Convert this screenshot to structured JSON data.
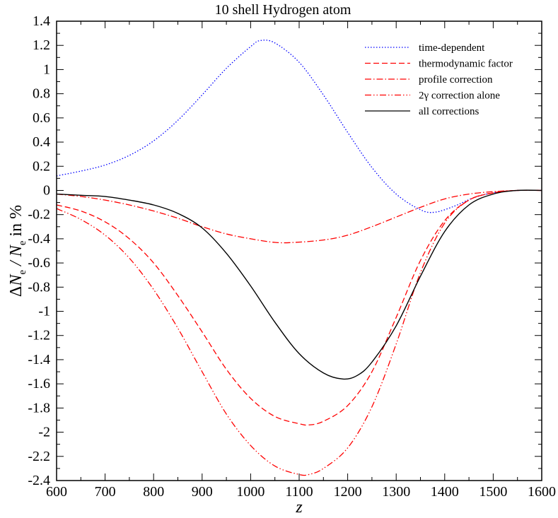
{
  "chart_data": {
    "type": "line",
    "title": "10 shell Hydrogen atom",
    "xlabel": "z",
    "ylabel": "ΔN_e / N_e in %",
    "xlim": [
      600,
      1600
    ],
    "ylim": [
      -2.4,
      1.4
    ],
    "x_ticks": [
      "600",
      "700",
      "800",
      "900",
      "1000",
      "1100",
      "1200",
      "1300",
      "1400",
      "1500",
      "1600"
    ],
    "y_ticks": [
      "1.4",
      "1.2",
      "1",
      "0.8",
      "0.6",
      "0.4",
      "0.2",
      "0",
      "-0.2",
      "-0.4",
      "-0.6",
      "-0.8",
      "-1",
      "-1.2",
      "-1.4",
      "-1.6",
      "-1.8",
      "-2",
      "-2.2",
      "-2.4"
    ],
    "legend_position": "top-right",
    "series": [
      {
        "name": "time-dependent",
        "color": "#0000ff",
        "dash": "dotted",
        "points": [
          [
            600,
            0.12
          ],
          [
            650,
            0.16
          ],
          [
            700,
            0.21
          ],
          [
            750,
            0.29
          ],
          [
            800,
            0.41
          ],
          [
            850,
            0.58
          ],
          [
            900,
            0.79
          ],
          [
            950,
            1.01
          ],
          [
            1000,
            1.19
          ],
          [
            1020,
            1.24
          ],
          [
            1050,
            1.22
          ],
          [
            1100,
            1.06
          ],
          [
            1150,
            0.79
          ],
          [
            1200,
            0.48
          ],
          [
            1250,
            0.19
          ],
          [
            1300,
            -0.03
          ],
          [
            1350,
            -0.16
          ],
          [
            1380,
            -0.18
          ],
          [
            1420,
            -0.13
          ],
          [
            1460,
            -0.06
          ],
          [
            1500,
            -0.02
          ],
          [
            1550,
            0.0
          ],
          [
            1600,
            0.0
          ]
        ]
      },
      {
        "name": "thermodynamic factor",
        "color": "#ff0000",
        "dash": "dashed",
        "points": [
          [
            600,
            -0.12
          ],
          [
            650,
            -0.17
          ],
          [
            700,
            -0.26
          ],
          [
            750,
            -0.4
          ],
          [
            800,
            -0.6
          ],
          [
            850,
            -0.87
          ],
          [
            900,
            -1.17
          ],
          [
            950,
            -1.48
          ],
          [
            1000,
            -1.72
          ],
          [
            1050,
            -1.87
          ],
          [
            1100,
            -1.93
          ],
          [
            1120,
            -1.94
          ],
          [
            1150,
            -1.91
          ],
          [
            1200,
            -1.78
          ],
          [
            1250,
            -1.5
          ],
          [
            1300,
            -1.05
          ],
          [
            1350,
            -0.58
          ],
          [
            1400,
            -0.25
          ],
          [
            1450,
            -0.08
          ],
          [
            1500,
            -0.02
          ],
          [
            1550,
            0.0
          ],
          [
            1600,
            0.0
          ]
        ]
      },
      {
        "name": "profile correction",
        "color": "#ff0000",
        "dash": "dashdot",
        "points": [
          [
            600,
            -0.03
          ],
          [
            650,
            -0.05
          ],
          [
            700,
            -0.08
          ],
          [
            750,
            -0.12
          ],
          [
            800,
            -0.17
          ],
          [
            850,
            -0.23
          ],
          [
            900,
            -0.3
          ],
          [
            950,
            -0.36
          ],
          [
            1000,
            -0.4
          ],
          [
            1050,
            -0.43
          ],
          [
            1090,
            -0.43
          ],
          [
            1150,
            -0.41
          ],
          [
            1200,
            -0.37
          ],
          [
            1250,
            -0.3
          ],
          [
            1300,
            -0.22
          ],
          [
            1350,
            -0.14
          ],
          [
            1400,
            -0.07
          ],
          [
            1450,
            -0.03
          ],
          [
            1500,
            -0.01
          ],
          [
            1550,
            0.0
          ],
          [
            1600,
            0.0
          ]
        ]
      },
      {
        "name": "2γ correction alone",
        "color": "#ff0000",
        "dash": "dashdotdot",
        "points": [
          [
            600,
            -0.15
          ],
          [
            650,
            -0.24
          ],
          [
            700,
            -0.37
          ],
          [
            750,
            -0.56
          ],
          [
            800,
            -0.82
          ],
          [
            850,
            -1.14
          ],
          [
            900,
            -1.5
          ],
          [
            950,
            -1.85
          ],
          [
            1000,
            -2.11
          ],
          [
            1050,
            -2.28
          ],
          [
            1100,
            -2.35
          ],
          [
            1120,
            -2.35
          ],
          [
            1150,
            -2.3
          ],
          [
            1200,
            -2.13
          ],
          [
            1250,
            -1.79
          ],
          [
            1300,
            -1.27
          ],
          [
            1350,
            -0.68
          ],
          [
            1400,
            -0.27
          ],
          [
            1450,
            -0.08
          ],
          [
            1500,
            -0.02
          ],
          [
            1550,
            0.0
          ],
          [
            1600,
            0.0
          ]
        ]
      },
      {
        "name": "all corrections",
        "color": "#000000",
        "dash": "solid",
        "points": [
          [
            600,
            -0.03
          ],
          [
            650,
            -0.04
          ],
          [
            700,
            -0.05
          ],
          [
            750,
            -0.08
          ],
          [
            800,
            -0.12
          ],
          [
            850,
            -0.19
          ],
          [
            900,
            -0.31
          ],
          [
            950,
            -0.52
          ],
          [
            1000,
            -0.79
          ],
          [
            1050,
            -1.09
          ],
          [
            1100,
            -1.35
          ],
          [
            1150,
            -1.51
          ],
          [
            1190,
            -1.56
          ],
          [
            1220,
            -1.53
          ],
          [
            1250,
            -1.42
          ],
          [
            1300,
            -1.12
          ],
          [
            1350,
            -0.71
          ],
          [
            1400,
            -0.34
          ],
          [
            1450,
            -0.12
          ],
          [
            1500,
            -0.03
          ],
          [
            1550,
            0.0
          ],
          [
            1600,
            0.0
          ]
        ]
      }
    ]
  }
}
